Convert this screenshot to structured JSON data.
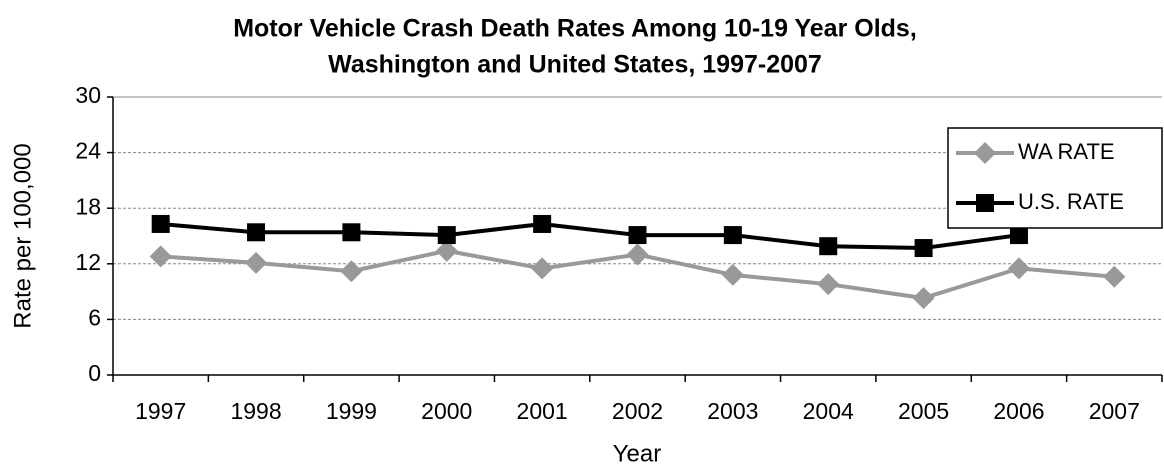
{
  "chart_data": {
    "type": "line",
    "title": [
      "Motor Vehicle Crash Death Rates Among 10-19 Year Olds,",
      "Washington and United States, 1997-2007"
    ],
    "x_label": "Year",
    "y_label": "Rate per 100,000",
    "categories": [
      "1997",
      "1998",
      "1999",
      "2000",
      "2001",
      "2002",
      "2003",
      "2004",
      "2005",
      "2006",
      "2007"
    ],
    "series": [
      {
        "name": "WA RATE",
        "color": "#999999",
        "marker": "diamond",
        "values": [
          12.8,
          12.1,
          11.2,
          13.4,
          11.5,
          13.0,
          10.8,
          9.8,
          8.3,
          11.5,
          10.6
        ]
      },
      {
        "name": "U.S. RATE",
        "color": "#000000",
        "marker": "square",
        "values": [
          16.3,
          15.4,
          15.4,
          15.1,
          16.3,
          15.1,
          15.1,
          13.9,
          13.7,
          15.1,
          null
        ]
      }
    ],
    "ylim": [
      0,
      30
    ],
    "yticks": [
      0,
      6,
      12,
      18,
      24,
      30
    ],
    "grid": true,
    "legend": "upper right"
  }
}
